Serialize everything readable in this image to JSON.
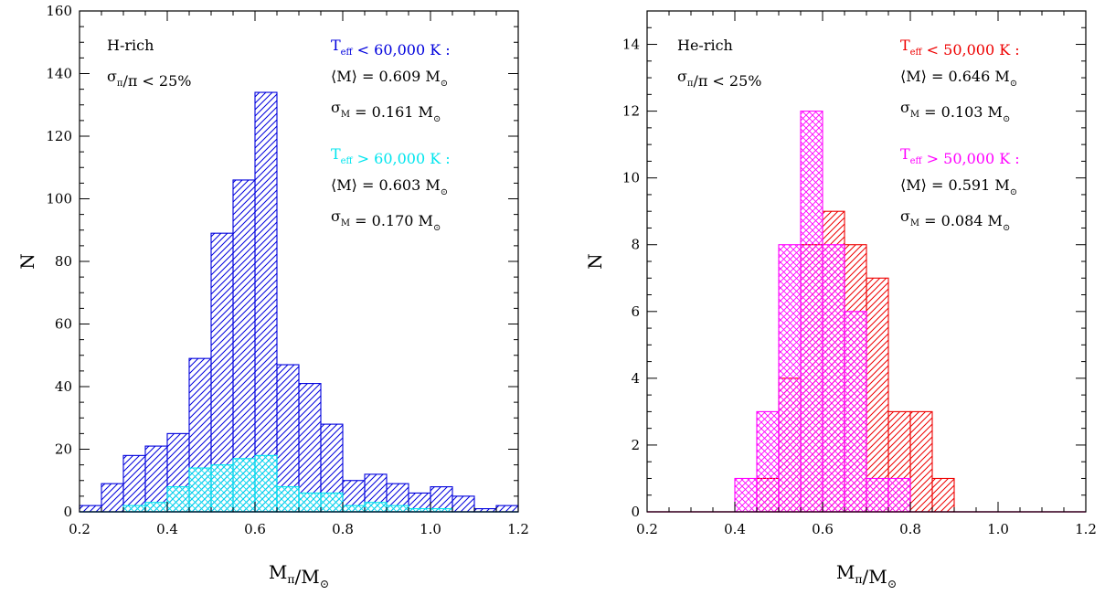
{
  "chart_data": [
    {
      "type": "histogram",
      "x": [
        0.2,
        0.25,
        0.3,
        0.35,
        0.4,
        0.45,
        0.5,
        0.55,
        0.6,
        0.65,
        0.7,
        0.75,
        0.8,
        0.85,
        0.9,
        0.95,
        1.0,
        1.05,
        1.1,
        1.15
      ],
      "bin_width": 0.05,
      "xlim": [
        0.2,
        1.2
      ],
      "ylim": [
        0,
        160
      ],
      "xticks": [
        "0.2",
        "0.4",
        "0.6",
        "0.8",
        "1.0",
        "1.2"
      ],
      "yticks": [
        "0",
        "20",
        "40",
        "60",
        "80",
        "100",
        "120",
        "140",
        "160"
      ],
      "xlabel": "Mπ/M⊙",
      "ylabel": "N",
      "series": [
        {
          "color": "#0000dd",
          "hatch": "diagonal",
          "values": [
            2,
            9,
            18,
            21,
            25,
            49,
            89,
            106,
            134,
            47,
            41,
            28,
            10,
            12,
            9,
            6,
            8,
            5,
            1,
            2
          ]
        },
        {
          "color": "#00e5ee",
          "hatch": "cross",
          "values": [
            0,
            0,
            2,
            3,
            8,
            14,
            15,
            17,
            18,
            8,
            6,
            6,
            2,
            3,
            2,
            1,
            1,
            0,
            0,
            0
          ]
        }
      ],
      "annotations": {
        "sample": "H-rich",
        "cut": "σπ/π < 25%",
        "group1": {
          "label": "Teff < 60,000 K :",
          "color": "#0000dd",
          "mean": "⟨M⟩ = 0.609 M⊙",
          "sigma": "σM = 0.161 M⊙"
        },
        "group2": {
          "label": "Teff > 60,000 K :",
          "color": "#00e5ee",
          "mean": "⟨M⟩ = 0.603 M⊙",
          "sigma": "σM = 0.170 M⊙"
        }
      }
    },
    {
      "type": "histogram",
      "x": [
        0.2,
        0.25,
        0.3,
        0.35,
        0.4,
        0.45,
        0.5,
        0.55,
        0.6,
        0.65,
        0.7,
        0.75,
        0.8,
        0.85,
        0.9,
        0.95,
        1.0,
        1.05,
        1.1,
        1.15
      ],
      "bin_width": 0.05,
      "xlim": [
        0.2,
        1.2
      ],
      "ylim": [
        0,
        15
      ],
      "xticks": [
        "0.2",
        "0.4",
        "0.6",
        "0.8",
        "1.0",
        "1.2"
      ],
      "yticks": [
        "0",
        "2",
        "4",
        "6",
        "8",
        "10",
        "12",
        "14"
      ],
      "xlabel": "Mπ/M⊙",
      "ylabel": "N",
      "series": [
        {
          "color": "#ee0000",
          "hatch": "diagonal",
          "values": [
            0,
            0,
            0,
            0,
            0,
            1,
            4,
            8,
            9,
            8,
            7,
            3,
            3,
            1,
            0,
            0,
            0,
            0,
            0,
            0
          ]
        },
        {
          "color": "#ff00ff",
          "hatch": "cross",
          "values": [
            0,
            0,
            0,
            0,
            1,
            3,
            8,
            12,
            8,
            6,
            1,
            1,
            0,
            0,
            0,
            0,
            0,
            0,
            0,
            0
          ]
        }
      ],
      "annotations": {
        "sample": "He-rich",
        "cut": "σπ/π < 25%",
        "group1": {
          "label": "Teff < 50,000 K :",
          "color": "#ee0000",
          "mean": "⟨M⟩ = 0.646 M⊙",
          "sigma": "σM = 0.103 M⊙"
        },
        "group2": {
          "label": "Teff > 50,000 K :",
          "color": "#ff00ff",
          "mean": "⟨M⟩ = 0.591 M⊙",
          "sigma": "σM = 0.084 M⊙"
        }
      }
    }
  ]
}
